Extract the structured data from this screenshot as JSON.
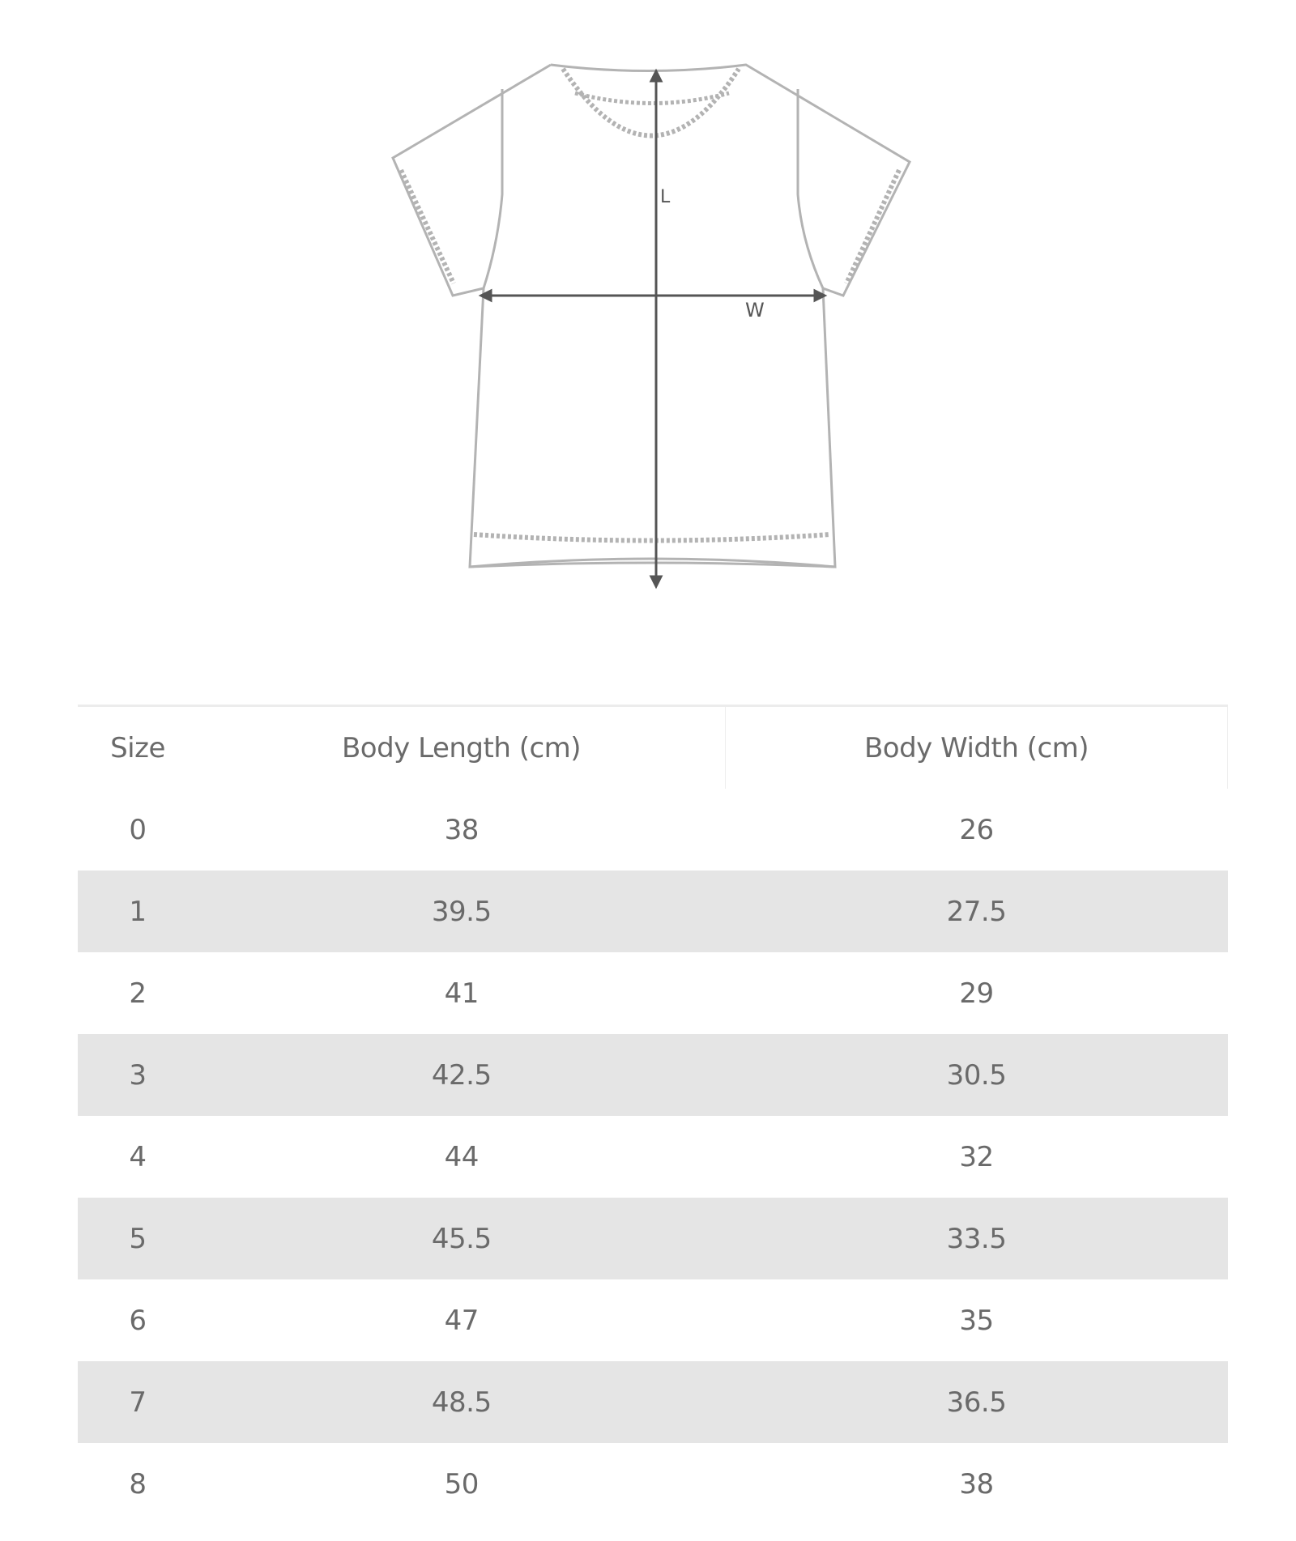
{
  "diagram": {
    "length_label": "L",
    "width_label": "W",
    "line_color": "#555555",
    "outline_color": "#b0b0b0"
  },
  "table": {
    "headers": [
      "Size",
      "Body Length (cm)",
      "Body Width (cm)"
    ],
    "rows": [
      [
        "0",
        "38",
        "26"
      ],
      [
        "1",
        "39.5",
        "27.5"
      ],
      [
        "2",
        "41",
        "29"
      ],
      [
        "3",
        "42.5",
        "30.5"
      ],
      [
        "4",
        "44",
        "32"
      ],
      [
        "5",
        "45.5",
        "33.5"
      ],
      [
        "6",
        "47",
        "35"
      ],
      [
        "7",
        "48.5",
        "36.5"
      ],
      [
        "8",
        "50",
        "38"
      ]
    ],
    "stripe_color": "#e5e5e5"
  }
}
